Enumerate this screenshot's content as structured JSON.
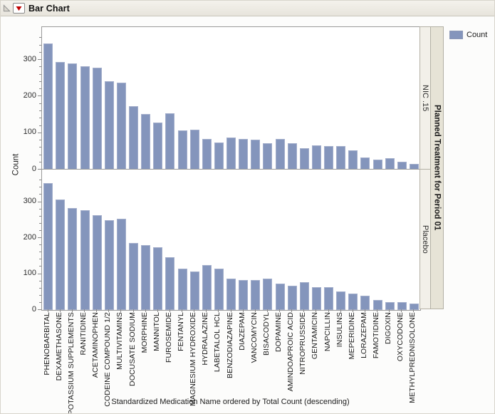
{
  "header": {
    "title": "Bar Chart"
  },
  "legend": {
    "label": "Count"
  },
  "colors": {
    "bar": "#8495bc",
    "bar_border": "#a3aecb",
    "strip_inner_bg": "#f2f0e9",
    "strip_outer_bg": "#e6e3d6",
    "titlebar_menu_red": "#c00000"
  },
  "icons": {
    "disclosure": "disclosure-triangle-icon",
    "red_menu": "red-triangle-menu-icon"
  },
  "panel_strip": {
    "outer_label": "Planned Treatment for Period 01",
    "panel_labels": [
      "NIC .15",
      "Placebo"
    ]
  },
  "axes": {
    "y_title": "Count",
    "x_title": "Standardized Medication Name ordered by Total Count (descending)"
  },
  "chart_data": {
    "type": "bar",
    "title": "Bar Chart",
    "xlabel": "Standardized Medication Name ordered by Total Count (descending)",
    "ylabel": "Count",
    "ylim": [
      0,
      390
    ],
    "yticks": [
      0,
      100,
      200,
      300
    ],
    "y_minor_step": 20,
    "grid": false,
    "legend_entries": [
      "Count"
    ],
    "legend_position": "top-right",
    "panel_variable": "Planned Treatment for Period 01",
    "panel_order": [
      "NIC .15",
      "Placebo"
    ],
    "categories": [
      "PHENOBARBITAL",
      "DEXAMETHASONE",
      "POTASSIUM SUPPLEMENTS",
      "RANITIDINE",
      "ACETAMINOPHEN",
      "CODEINE COMPOUND 1/2",
      "MULTIVITAMINS",
      "DOCUSATE SODIUM",
      "MORPHINE",
      "MANNITOL",
      "FUROSEMIDE",
      "FENTANYL",
      "MAGNESIUM HYDROXIDE",
      "HYDRALAZINE",
      "LABETALOL HCL",
      "BENZODIAZAPINE",
      "DIAZEPAM",
      "VANCOMYCIN",
      "BISACODYL",
      "DOPAMINE",
      "AMINDOAPROIC ACID",
      "NITROPRUSSIDE",
      "GENTAMICIN",
      "NAPCILLIN",
      "INSULINS",
      "MEPERIDINE",
      "LORAZEPAM",
      "FAMOTIDINE",
      "DIGOXIN",
      "OXYCODONE",
      "METHYLPREDNISOLONE"
    ],
    "series": [
      {
        "name": "NIC .15",
        "values": [
          345,
          295,
          290,
          282,
          278,
          241,
          237,
          174,
          152,
          128,
          154,
          107,
          109,
          83,
          75,
          88,
          83,
          82,
          73,
          83,
          72,
          58,
          67,
          65,
          64,
          52,
          33,
          28,
          31,
          21,
          16
        ]
      },
      {
        "name": "Placebo",
        "values": [
          352,
          306,
          284,
          278,
          263,
          250,
          254,
          186,
          181,
          174,
          147,
          115,
          106,
          125,
          114,
          88,
          84,
          83,
          87,
          74,
          68,
          77,
          63,
          64,
          51,
          45,
          40,
          27,
          21,
          21,
          17
        ]
      }
    ]
  }
}
